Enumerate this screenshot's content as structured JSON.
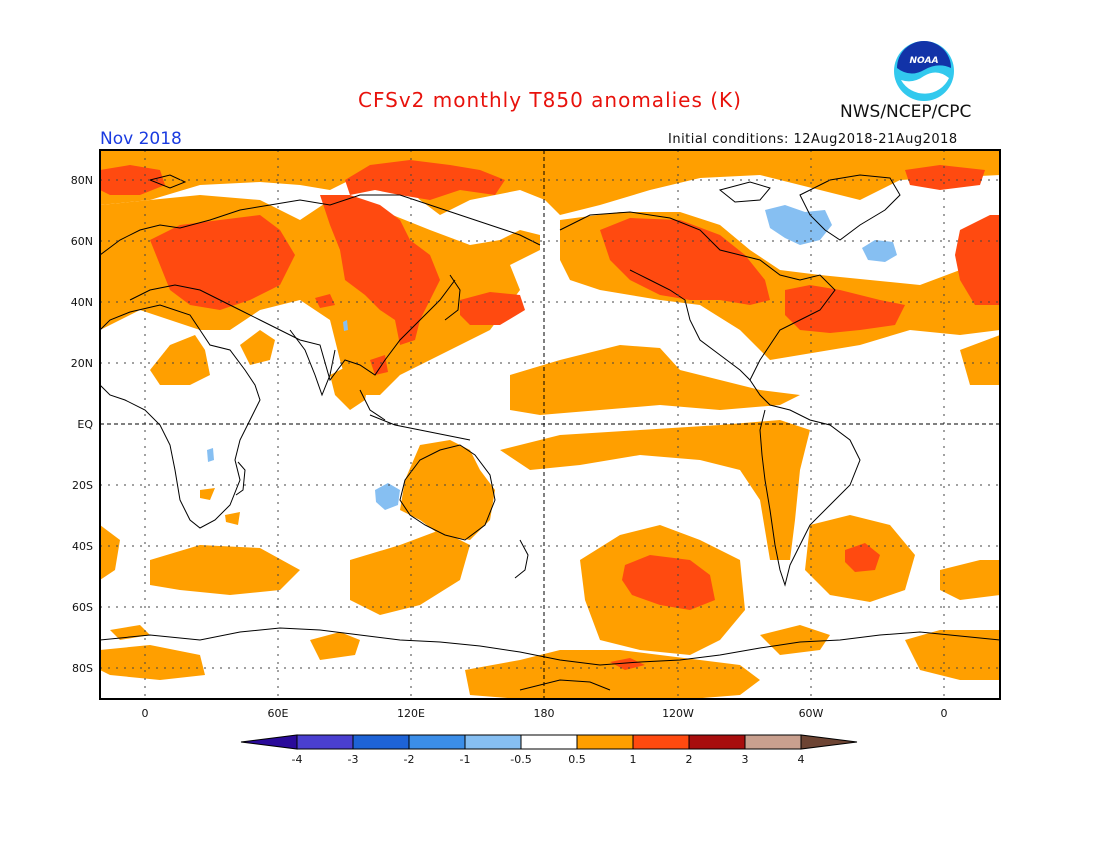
{
  "title": "CFSv2 monthly T850 anomalies (K)",
  "org": "NWS/NCEP/CPC",
  "period": "Nov 2018",
  "initial_conditions": "Initial conditions: 12Aug2018-21Aug2018",
  "logo_text": "NOAA",
  "map": {
    "lat_labels": [
      "80N",
      "60N",
      "40N",
      "20N",
      "EQ",
      "20S",
      "40S",
      "60S",
      "80S"
    ],
    "lon_labels": [
      "0",
      "60E",
      "120E",
      "180",
      "120W",
      "60W",
      "0"
    ]
  },
  "legend": {
    "labels": [
      "-4",
      "-3",
      "-2",
      "-1",
      "-0.5",
      "0.5",
      "1",
      "2",
      "3",
      "4"
    ],
    "colors": [
      "#2a0a9a",
      "#4a3fd0",
      "#1e63d6",
      "#3b8ee8",
      "#86bff2",
      "#ffffff",
      "#ff9f00",
      "#ff4a10",
      "#a80d0d",
      "#c9a08f",
      "#6d4433"
    ]
  }
}
